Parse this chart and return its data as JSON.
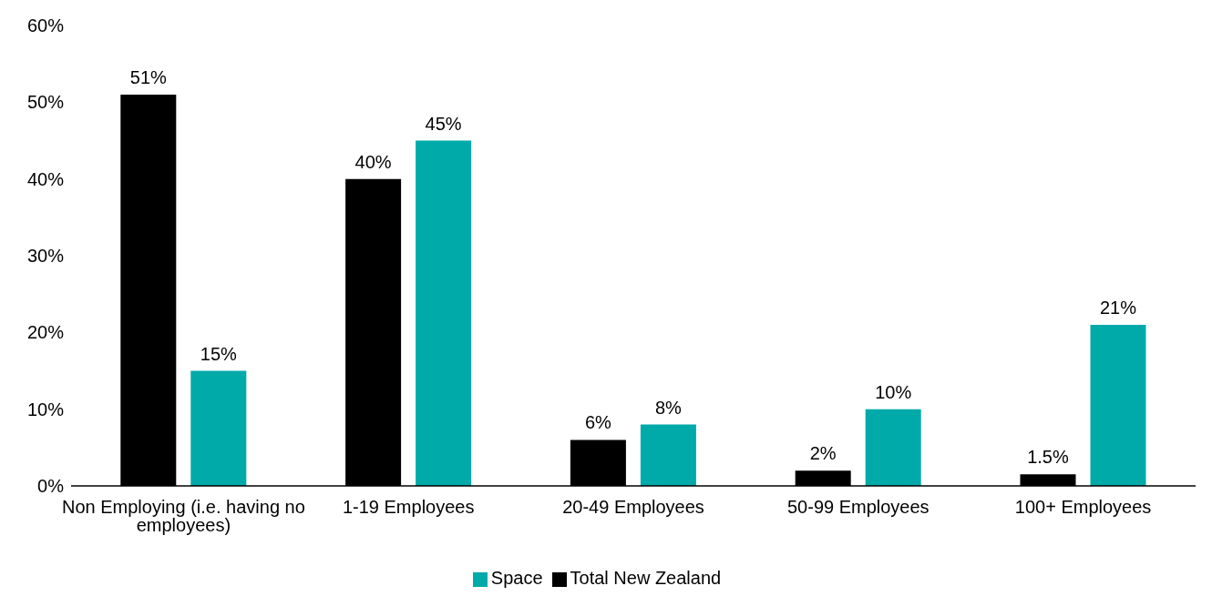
{
  "chart_data": {
    "type": "bar",
    "categories": [
      "Non Employing (i.e. having no employees)",
      "1-19 Employees",
      "20-49 Employees",
      "50-99 Employees",
      "100+ Employees"
    ],
    "series": [
      {
        "name": "Total New Zealand",
        "color": "#000000",
        "values": [
          51,
          40,
          6,
          2,
          1.5
        ],
        "value_labels": [
          "51%",
          "40%",
          "6%",
          "2%",
          "1.5%"
        ]
      },
      {
        "name": "Space",
        "color": "#00aaa9",
        "values": [
          15,
          45,
          8,
          10,
          21
        ],
        "value_labels": [
          "15%",
          "45%",
          "8%",
          "10%",
          "21%"
        ]
      }
    ],
    "ylim": [
      0,
      60
    ],
    "yticks": [
      {
        "value": 0,
        "label": "0%"
      },
      {
        "value": 10,
        "label": "10%"
      },
      {
        "value": 20,
        "label": "20%"
      },
      {
        "value": 30,
        "label": "30%"
      },
      {
        "value": 40,
        "label": "40%"
      },
      {
        "value": 50,
        "label": "50%"
      },
      {
        "value": 60,
        "label": "60%"
      }
    ],
    "grid": false,
    "legend": "bottom"
  }
}
